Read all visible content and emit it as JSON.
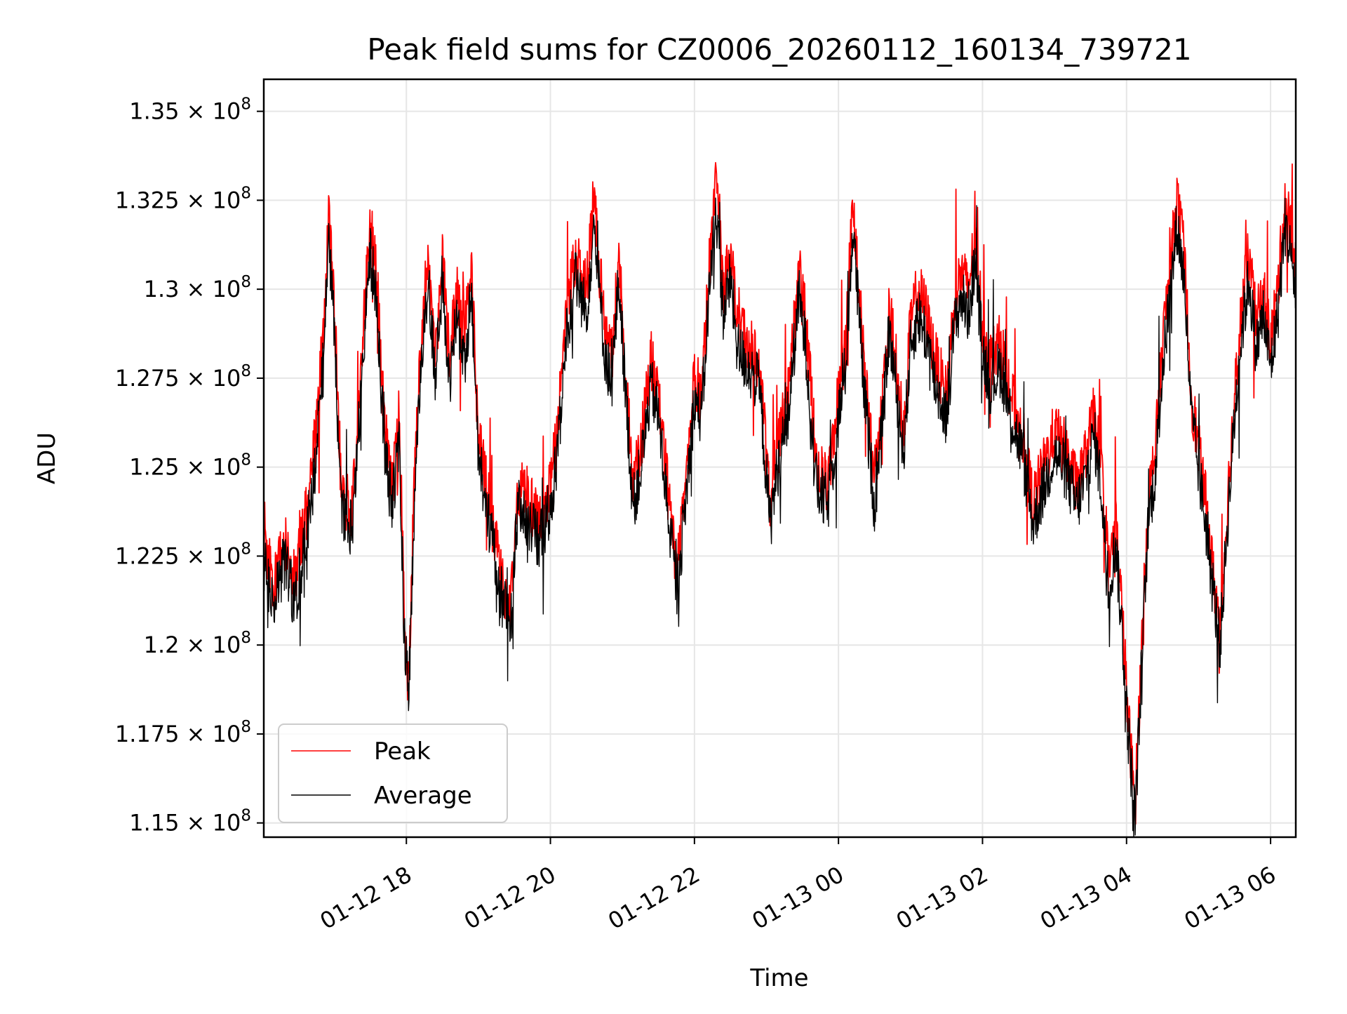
{
  "chart_data": {
    "type": "line",
    "title": "Peak field sums for CZ0006_20260112_160134_739721",
    "xlabel": "Time",
    "ylabel": "ADU",
    "x_range_hours": [
      16.02,
      30.35
    ],
    "x_ticks": [
      {
        "hour": 18,
        "label": "01-12 18"
      },
      {
        "hour": 20,
        "label": "01-12 20"
      },
      {
        "hour": 22,
        "label": "01-12 22"
      },
      {
        "hour": 24,
        "label": "01-13 00"
      },
      {
        "hour": 26,
        "label": "01-13 02"
      },
      {
        "hour": 28,
        "label": "01-13 04"
      },
      {
        "hour": 30,
        "label": "01-13 06"
      }
    ],
    "ylim": [
      114600000,
      135900000
    ],
    "y_ticks": [
      {
        "value": 115000000,
        "mantissa": "1.15",
        "exponent": "8"
      },
      {
        "value": 117500000,
        "mantissa": "1.175",
        "exponent": "8"
      },
      {
        "value": 120000000,
        "mantissa": "1.2",
        "exponent": "8"
      },
      {
        "value": 122500000,
        "mantissa": "1.225",
        "exponent": "8"
      },
      {
        "value": 125000000,
        "mantissa": "1.25",
        "exponent": "8"
      },
      {
        "value": 127500000,
        "mantissa": "1.275",
        "exponent": "8"
      },
      {
        "value": 130000000,
        "mantissa": "1.3",
        "exponent": "8"
      },
      {
        "value": 132500000,
        "mantissa": "1.325",
        "exponent": "8"
      },
      {
        "value": 135000000,
        "mantissa": "1.35",
        "exponent": "8"
      }
    ],
    "times_symbol": "×",
    "base": "10",
    "grid": true,
    "legend_position": "bottom-left",
    "series": [
      {
        "name": "Peak",
        "color": "#ff0000",
        "anchors": [
          [
            16.02,
            123.4
          ],
          [
            16.15,
            121.5
          ],
          [
            16.3,
            123.0
          ],
          [
            16.45,
            121.8
          ],
          [
            16.6,
            123.6
          ],
          [
            16.75,
            126.0
          ],
          [
            16.85,
            129.0
          ],
          [
            16.92,
            132.2
          ],
          [
            17.0,
            129.5
          ],
          [
            17.1,
            124.2
          ],
          [
            17.25,
            123.8
          ],
          [
            17.4,
            128.8
          ],
          [
            17.5,
            131.8
          ],
          [
            17.6,
            130.0
          ],
          [
            17.7,
            126.0
          ],
          [
            17.8,
            124.5
          ],
          [
            17.9,
            126.5
          ],
          [
            17.97,
            121.0
          ],
          [
            18.03,
            118.8
          ],
          [
            18.1,
            124.0
          ],
          [
            18.2,
            128.5
          ],
          [
            18.3,
            131.0
          ],
          [
            18.4,
            128.0
          ],
          [
            18.5,
            131.0
          ],
          [
            18.6,
            128.0
          ],
          [
            18.7,
            130.0
          ],
          [
            18.8,
            128.5
          ],
          [
            18.9,
            130.5
          ],
          [
            19.0,
            126.0
          ],
          [
            19.15,
            124.0
          ],
          [
            19.3,
            122.0
          ],
          [
            19.45,
            121.0
          ],
          [
            19.55,
            124.5
          ],
          [
            19.7,
            124.0
          ],
          [
            19.85,
            123.5
          ],
          [
            20.0,
            124.5
          ],
          [
            20.1,
            126.0
          ],
          [
            20.2,
            129.0
          ],
          [
            20.35,
            131.0
          ],
          [
            20.5,
            130.0
          ],
          [
            20.6,
            132.5
          ],
          [
            20.75,
            129.0
          ],
          [
            20.85,
            128.0
          ],
          [
            20.95,
            131.0
          ],
          [
            21.05,
            127.5
          ],
          [
            21.15,
            124.5
          ],
          [
            21.25,
            125.5
          ],
          [
            21.4,
            128.0
          ],
          [
            21.5,
            127.0
          ],
          [
            21.6,
            125.0
          ],
          [
            21.75,
            122.0
          ],
          [
            21.85,
            124.0
          ],
          [
            22.0,
            127.5
          ],
          [
            22.1,
            127.0
          ],
          [
            22.2,
            130.5
          ],
          [
            22.3,
            133.0
          ],
          [
            22.4,
            130.0
          ],
          [
            22.5,
            131.0
          ],
          [
            22.6,
            129.0
          ],
          [
            22.75,
            128.5
          ],
          [
            22.9,
            128.0
          ],
          [
            23.05,
            124.0
          ],
          [
            23.15,
            125.5
          ],
          [
            23.3,
            127.0
          ],
          [
            23.45,
            130.5
          ],
          [
            23.55,
            129.0
          ],
          [
            23.7,
            125.0
          ],
          [
            23.85,
            124.5
          ],
          [
            24.0,
            127.0
          ],
          [
            24.1,
            128.5
          ],
          [
            24.2,
            132.5
          ],
          [
            24.35,
            128.0
          ],
          [
            24.5,
            124.5
          ],
          [
            24.6,
            126.5
          ],
          [
            24.7,
            129.5
          ],
          [
            24.8,
            128.0
          ],
          [
            24.9,
            126.0
          ],
          [
            25.0,
            129.0
          ],
          [
            25.1,
            130.0
          ],
          [
            25.2,
            129.5
          ],
          [
            25.35,
            128.0
          ],
          [
            25.5,
            127.0
          ],
          [
            25.6,
            129.5
          ],
          [
            25.7,
            130.5
          ],
          [
            25.8,
            130.0
          ],
          [
            25.9,
            131.5
          ],
          [
            26.0,
            129.0
          ],
          [
            26.1,
            128.0
          ],
          [
            26.25,
            128.5
          ],
          [
            26.4,
            127.0
          ],
          [
            26.55,
            126.0
          ],
          [
            26.7,
            124.0
          ],
          [
            26.85,
            125.0
          ],
          [
            27.0,
            126.0
          ],
          [
            27.15,
            125.5
          ],
          [
            27.3,
            124.5
          ],
          [
            27.4,
            125.0
          ],
          [
            27.55,
            126.5
          ],
          [
            27.65,
            125.0
          ],
          [
            27.75,
            122.0
          ],
          [
            27.85,
            123.5
          ],
          [
            27.95,
            120.5
          ],
          [
            28.02,
            118.0
          ],
          [
            28.08,
            116.5
          ],
          [
            28.12,
            115.5
          ],
          [
            28.2,
            119.5
          ],
          [
            28.3,
            124.0
          ],
          [
            28.4,
            125.5
          ],
          [
            28.5,
            128.5
          ],
          [
            28.6,
            130.5
          ],
          [
            28.7,
            132.5
          ],
          [
            28.8,
            131.0
          ],
          [
            28.9,
            127.0
          ],
          [
            29.0,
            125.5
          ],
          [
            29.1,
            124.0
          ],
          [
            29.2,
            122.0
          ],
          [
            29.3,
            120.5
          ],
          [
            29.4,
            124.0
          ],
          [
            29.5,
            127.0
          ],
          [
            29.6,
            129.5
          ],
          [
            29.7,
            131.0
          ],
          [
            29.8,
            129.0
          ],
          [
            29.9,
            130.0
          ],
          [
            30.0,
            128.5
          ],
          [
            30.1,
            130.0
          ],
          [
            30.2,
            132.5
          ],
          [
            30.3,
            131.5
          ],
          [
            30.35,
            130.5
          ]
        ]
      },
      {
        "name": "Average",
        "color": "#000000",
        "anchors": [
          [
            16.02,
            122.6
          ],
          [
            16.15,
            121.0
          ],
          [
            16.3,
            122.3
          ],
          [
            16.45,
            121.2
          ],
          [
            16.6,
            122.9
          ],
          [
            16.75,
            125.3
          ],
          [
            16.85,
            128.3
          ],
          [
            16.92,
            131.3
          ],
          [
            17.0,
            128.8
          ],
          [
            17.1,
            123.6
          ],
          [
            17.25,
            123.2
          ],
          [
            17.4,
            128.1
          ],
          [
            17.5,
            131.0
          ],
          [
            17.6,
            129.3
          ],
          [
            17.7,
            125.4
          ],
          [
            17.8,
            123.9
          ],
          [
            17.9,
            125.8
          ],
          [
            17.97,
            120.4
          ],
          [
            18.03,
            118.5
          ],
          [
            18.1,
            123.4
          ],
          [
            18.2,
            127.8
          ],
          [
            18.3,
            130.3
          ],
          [
            18.4,
            127.3
          ],
          [
            18.5,
            130.3
          ],
          [
            18.6,
            127.3
          ],
          [
            18.7,
            129.3
          ],
          [
            18.8,
            127.8
          ],
          [
            18.9,
            129.8
          ],
          [
            19.0,
            125.4
          ],
          [
            19.15,
            123.4
          ],
          [
            19.3,
            121.5
          ],
          [
            19.45,
            120.6
          ],
          [
            19.55,
            123.9
          ],
          [
            19.7,
            123.4
          ],
          [
            19.85,
            122.9
          ],
          [
            20.0,
            123.9
          ],
          [
            20.1,
            125.4
          ],
          [
            20.2,
            128.3
          ],
          [
            20.35,
            130.3
          ],
          [
            20.5,
            129.3
          ],
          [
            20.6,
            131.8
          ],
          [
            20.75,
            128.3
          ],
          [
            20.85,
            127.3
          ],
          [
            20.95,
            130.3
          ],
          [
            21.05,
            126.9
          ],
          [
            21.15,
            123.9
          ],
          [
            21.25,
            124.9
          ],
          [
            21.4,
            127.3
          ],
          [
            21.5,
            126.4
          ],
          [
            21.6,
            124.4
          ],
          [
            21.75,
            121.5
          ],
          [
            21.85,
            123.4
          ],
          [
            22.0,
            126.9
          ],
          [
            22.1,
            126.4
          ],
          [
            22.2,
            129.8
          ],
          [
            22.3,
            132.3
          ],
          [
            22.4,
            129.3
          ],
          [
            22.5,
            130.3
          ],
          [
            22.6,
            128.3
          ],
          [
            22.75,
            127.8
          ],
          [
            22.9,
            127.3
          ],
          [
            23.05,
            123.4
          ],
          [
            23.15,
            124.9
          ],
          [
            23.3,
            126.4
          ],
          [
            23.45,
            129.8
          ],
          [
            23.55,
            128.3
          ],
          [
            23.7,
            124.4
          ],
          [
            23.85,
            123.9
          ],
          [
            24.0,
            126.4
          ],
          [
            24.1,
            127.8
          ],
          [
            24.2,
            131.8
          ],
          [
            24.35,
            127.3
          ],
          [
            24.5,
            123.9
          ],
          [
            24.6,
            125.9
          ],
          [
            24.7,
            128.8
          ],
          [
            24.8,
            127.3
          ],
          [
            24.9,
            125.4
          ],
          [
            25.0,
            128.3
          ],
          [
            25.1,
            129.3
          ],
          [
            25.2,
            128.8
          ],
          [
            25.35,
            127.3
          ],
          [
            25.5,
            126.4
          ],
          [
            25.6,
            128.8
          ],
          [
            25.7,
            129.8
          ],
          [
            25.8,
            129.3
          ],
          [
            25.9,
            130.8
          ],
          [
            26.0,
            128.3
          ],
          [
            26.1,
            127.3
          ],
          [
            26.25,
            127.8
          ],
          [
            26.4,
            126.4
          ],
          [
            26.55,
            125.4
          ],
          [
            26.7,
            123.4
          ],
          [
            26.85,
            124.4
          ],
          [
            27.0,
            125.4
          ],
          [
            27.15,
            124.9
          ],
          [
            27.3,
            123.9
          ],
          [
            27.4,
            124.4
          ],
          [
            27.55,
            125.9
          ],
          [
            27.65,
            124.4
          ],
          [
            27.75,
            121.5
          ],
          [
            27.85,
            122.9
          ],
          [
            27.95,
            120.0
          ],
          [
            28.02,
            117.6
          ],
          [
            28.08,
            116.1
          ],
          [
            28.12,
            115.1
          ],
          [
            28.2,
            119.0
          ],
          [
            28.3,
            123.4
          ],
          [
            28.4,
            124.9
          ],
          [
            28.5,
            127.8
          ],
          [
            28.6,
            129.8
          ],
          [
            28.7,
            131.8
          ],
          [
            28.8,
            130.3
          ],
          [
            28.9,
            126.4
          ],
          [
            29.0,
            124.9
          ],
          [
            29.1,
            123.4
          ],
          [
            29.2,
            121.5
          ],
          [
            29.3,
            120.0
          ],
          [
            29.4,
            123.4
          ],
          [
            29.5,
            126.4
          ],
          [
            29.6,
            128.8
          ],
          [
            29.7,
            130.3
          ],
          [
            29.8,
            128.3
          ],
          [
            29.9,
            129.3
          ],
          [
            30.0,
            127.8
          ],
          [
            30.1,
            129.3
          ],
          [
            30.2,
            131.8
          ],
          [
            30.3,
            130.8
          ],
          [
            30.35,
            129.8
          ]
        ]
      }
    ]
  }
}
